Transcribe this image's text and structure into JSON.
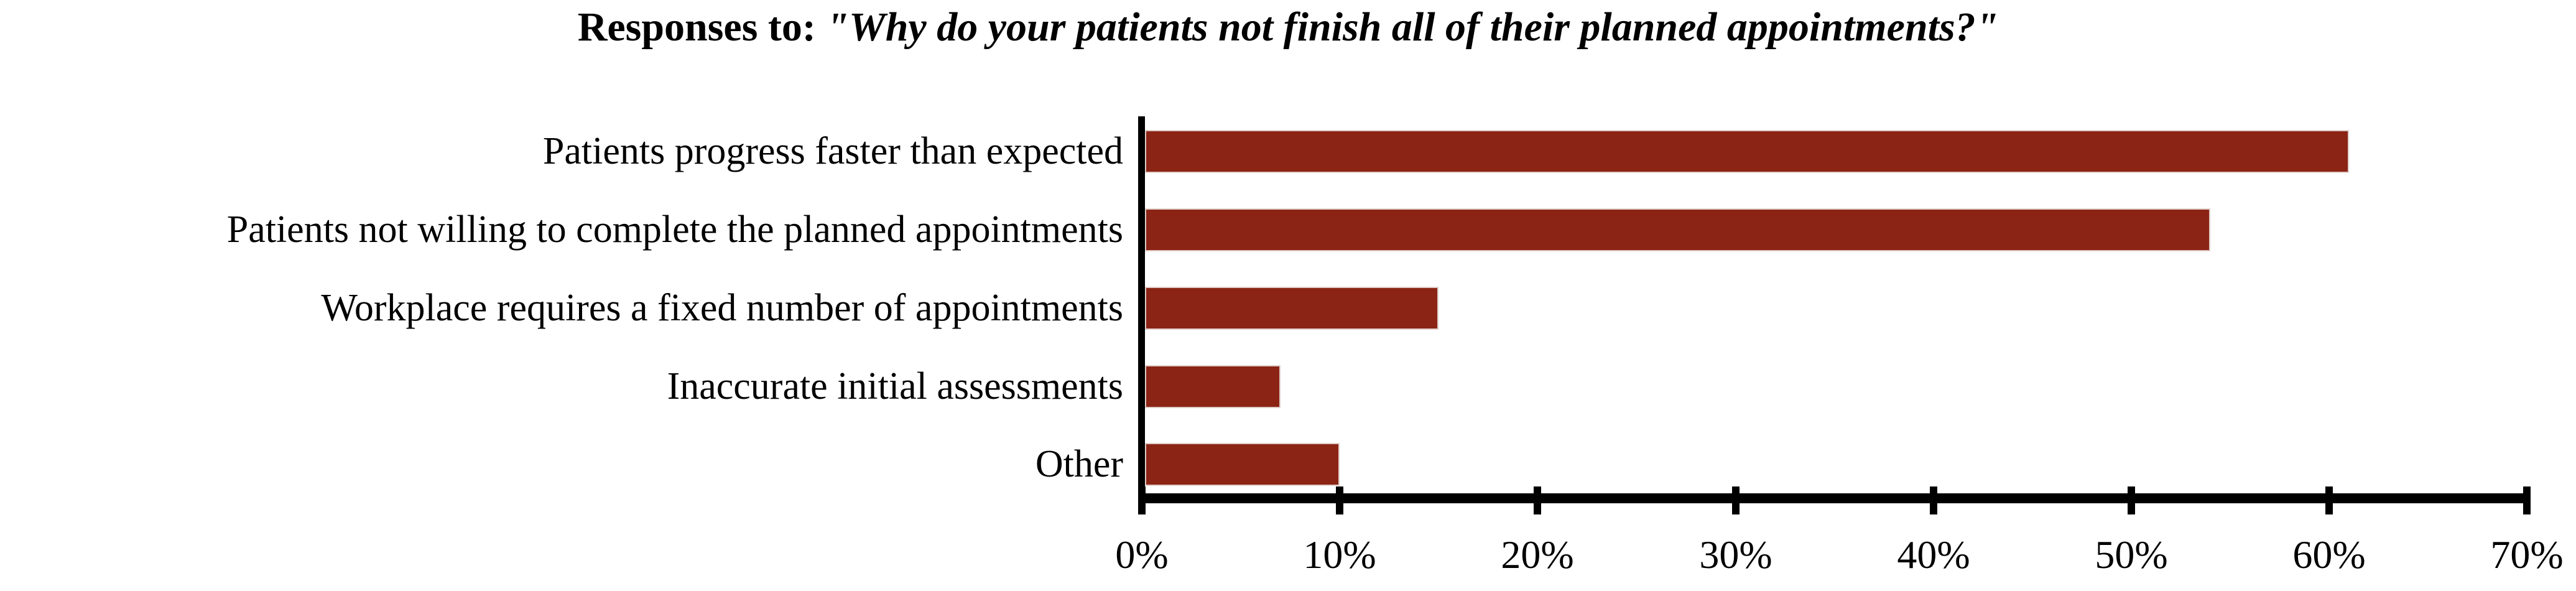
{
  "title": {
    "prefix": "Responses to: ",
    "quote": "\"Why do your patients not finish all of their planned appointments?\""
  },
  "chart_data": {
    "type": "bar",
    "orientation": "horizontal",
    "title": "Responses to: \"Why do your patients not finish all of their planned appointments?\"",
    "categories": [
      "Patients progress faster than expected",
      "Patients not willing to complete the planned appointments",
      "Workplace requires a fixed number of appointments",
      "Inaccurate initial assessments",
      "Other"
    ],
    "values": [
      61,
      54,
      15,
      7,
      10
    ],
    "unit": "%",
    "xlabel": "",
    "ylabel": "",
    "xlim": [
      0,
      70
    ],
    "x_tick_step": 10,
    "x_ticks": [
      "0%",
      "10%",
      "20%",
      "30%",
      "40%",
      "50%",
      "60%",
      "70%"
    ],
    "grid": false,
    "legend": null,
    "bar_color": "#8B2415",
    "bar_border_color": "#DFCDC8",
    "axis_color": "#000000",
    "text_color": "#000000"
  }
}
